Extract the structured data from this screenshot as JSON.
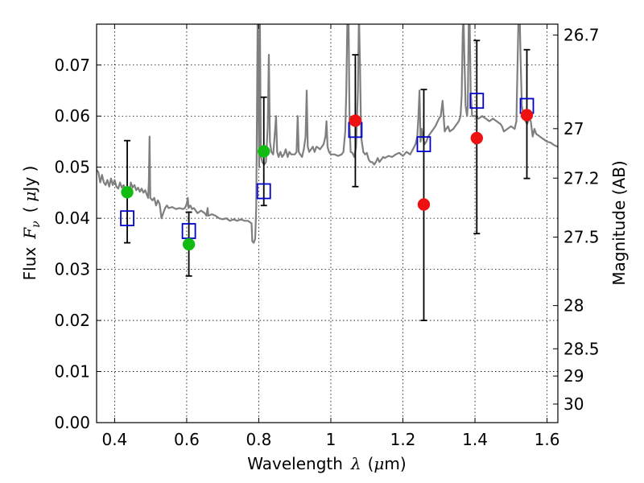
{
  "chart_data": {
    "type": "scatter",
    "xlabel_prefix": "Wavelength",
    "xlabel_symbol": "λ",
    "xlabel_unit_open": "(",
    "xlabel_unit_mu": "μ",
    "xlabel_unit_rest": "m)",
    "ylabel_prefix": "Flux",
    "ylabel_symbol": "F",
    "ylabel_subscript": "ν",
    "ylabel_unit_open": "(",
    "ylabel_unit_mu": "μ",
    "ylabel_unit_rest": "Jy )",
    "y2label": "Magnitude (AB)",
    "xlim": [
      0.35,
      1.63
    ],
    "ylim": [
      0.0,
      0.078
    ],
    "x_ticks": [
      {
        "value": 0.4,
        "label": "0.4"
      },
      {
        "value": 0.6,
        "label": "0.6"
      },
      {
        "value": 0.8,
        "label": "0.8"
      },
      {
        "value": 1.0,
        "label": "1"
      },
      {
        "value": 1.2,
        "label": "1.2"
      },
      {
        "value": 1.4,
        "label": "1.4"
      },
      {
        "value": 1.6,
        "label": "1.6"
      }
    ],
    "y_ticks": [
      {
        "value": 0.0,
        "label": "0.00"
      },
      {
        "value": 0.01,
        "label": "0.01"
      },
      {
        "value": 0.02,
        "label": "0.02"
      },
      {
        "value": 0.03,
        "label": "0.03"
      },
      {
        "value": 0.04,
        "label": "0.04"
      },
      {
        "value": 0.05,
        "label": "0.05"
      },
      {
        "value": 0.06,
        "label": "0.06"
      },
      {
        "value": 0.07,
        "label": "0.07"
      }
    ],
    "mag_ticks": [
      {
        "mag": 26.7,
        "label": "26.7"
      },
      {
        "mag": 27.0,
        "label": "27"
      },
      {
        "mag": 27.2,
        "label": "27.2"
      },
      {
        "mag": 27.5,
        "label": "27.5"
      },
      {
        "mag": 28.0,
        "label": "28"
      },
      {
        "mag": 28.5,
        "label": "28.5"
      },
      {
        "mag": 29.0,
        "label": "29"
      },
      {
        "mag": 30.0,
        "label": "30"
      }
    ],
    "grid": true,
    "colors": {
      "spectrum": "#7f7f7f",
      "green": "#11bb11",
      "red": "#ee1111",
      "model_box": "#0000cc",
      "errorbar": "#000000"
    },
    "spectrum": [
      [
        0.35,
        0.0495
      ],
      [
        0.355,
        0.049
      ],
      [
        0.36,
        0.047
      ],
      [
        0.365,
        0.0485
      ],
      [
        0.37,
        0.047
      ],
      [
        0.375,
        0.0465
      ],
      [
        0.38,
        0.0475
      ],
      [
        0.385,
        0.0462
      ],
      [
        0.39,
        0.0478
      ],
      [
        0.395,
        0.0465
      ],
      [
        0.4,
        0.0475
      ],
      [
        0.405,
        0.0462
      ],
      [
        0.41,
        0.0458
      ],
      [
        0.415,
        0.047
      ],
      [
        0.42,
        0.046
      ],
      [
        0.425,
        0.0465
      ],
      [
        0.43,
        0.045
      ],
      [
        0.435,
        0.046
      ],
      [
        0.44,
        0.0445
      ],
      [
        0.445,
        0.047
      ],
      [
        0.45,
        0.046
      ],
      [
        0.455,
        0.0465
      ],
      [
        0.46,
        0.0455
      ],
      [
        0.465,
        0.046
      ],
      [
        0.47,
        0.0452
      ],
      [
        0.475,
        0.0458
      ],
      [
        0.48,
        0.045
      ],
      [
        0.485,
        0.0455
      ],
      [
        0.49,
        0.0445
      ],
      [
        0.493,
        0.044
      ],
      [
        0.495,
        0.047
      ],
      [
        0.497,
        0.056
      ],
      [
        0.499,
        0.044
      ],
      [
        0.505,
        0.0435
      ],
      [
        0.51,
        0.044
      ],
      [
        0.515,
        0.0425
      ],
      [
        0.52,
        0.0435
      ],
      [
        0.525,
        0.0428
      ],
      [
        0.53,
        0.04
      ],
      [
        0.535,
        0.041
      ],
      [
        0.54,
        0.042
      ],
      [
        0.545,
        0.0425
      ],
      [
        0.55,
        0.042
      ],
      [
        0.56,
        0.0422
      ],
      [
        0.57,
        0.0418
      ],
      [
        0.58,
        0.042
      ],
      [
        0.59,
        0.0418
      ],
      [
        0.595,
        0.042
      ],
      [
        0.6,
        0.0428
      ],
      [
        0.603,
        0.044
      ],
      [
        0.605,
        0.042
      ],
      [
        0.61,
        0.0425
      ],
      [
        0.615,
        0.0418
      ],
      [
        0.62,
        0.042
      ],
      [
        0.63,
        0.041
      ],
      [
        0.64,
        0.0415
      ],
      [
        0.65,
        0.041
      ],
      [
        0.655,
        0.0405
      ],
      [
        0.658,
        0.042
      ],
      [
        0.66,
        0.0405
      ],
      [
        0.67,
        0.0408
      ],
      [
        0.68,
        0.0405
      ],
      [
        0.69,
        0.04
      ],
      [
        0.7,
        0.0398
      ],
      [
        0.71,
        0.04
      ],
      [
        0.72,
        0.0395
      ],
      [
        0.73,
        0.0398
      ],
      [
        0.74,
        0.0395
      ],
      [
        0.75,
        0.0398
      ],
      [
        0.76,
        0.0395
      ],
      [
        0.77,
        0.0395
      ],
      [
        0.78,
        0.039
      ],
      [
        0.782,
        0.0355
      ],
      [
        0.786,
        0.0352
      ],
      [
        0.79,
        0.036
      ],
      [
        0.793,
        0.042
      ],
      [
        0.795,
        0.06
      ],
      [
        0.797,
        0.08
      ],
      [
        0.799,
        0.065
      ],
      [
        0.801,
        0.05
      ],
      [
        0.803,
        0.08
      ],
      [
        0.806,
        0.052
      ],
      [
        0.81,
        0.051
      ],
      [
        0.815,
        0.0505
      ],
      [
        0.82,
        0.051
      ],
      [
        0.825,
        0.058
      ],
      [
        0.828,
        0.072
      ],
      [
        0.831,
        0.055
      ],
      [
        0.835,
        0.053
      ],
      [
        0.84,
        0.0525
      ],
      [
        0.845,
        0.057
      ],
      [
        0.848,
        0.06
      ],
      [
        0.851,
        0.053
      ],
      [
        0.855,
        0.052
      ],
      [
        0.86,
        0.053
      ],
      [
        0.865,
        0.052
      ],
      [
        0.87,
        0.0525
      ],
      [
        0.875,
        0.0535
      ],
      [
        0.88,
        0.052
      ],
      [
        0.885,
        0.053
      ],
      [
        0.89,
        0.0525
      ],
      [
        0.9,
        0.0525
      ],
      [
        0.905,
        0.053
      ],
      [
        0.908,
        0.06
      ],
      [
        0.911,
        0.053
      ],
      [
        0.915,
        0.0525
      ],
      [
        0.92,
        0.052
      ],
      [
        0.925,
        0.0535
      ],
      [
        0.93,
        0.056
      ],
      [
        0.933,
        0.065
      ],
      [
        0.936,
        0.054
      ],
      [
        0.94,
        0.053
      ],
      [
        0.945,
        0.0535
      ],
      [
        0.95,
        0.054
      ],
      [
        0.955,
        0.053
      ],
      [
        0.96,
        0.054
      ],
      [
        0.965,
        0.0538
      ],
      [
        0.97,
        0.0535
      ],
      [
        0.975,
        0.054
      ],
      [
        0.98,
        0.0545
      ],
      [
        0.985,
        0.056
      ],
      [
        0.988,
        0.059
      ],
      [
        0.991,
        0.054
      ],
      [
        0.995,
        0.053
      ],
      [
        1.0,
        0.0525
      ],
      [
        1.01,
        0.0525
      ],
      [
        1.02,
        0.0522
      ],
      [
        1.03,
        0.0525
      ],
      [
        1.035,
        0.053
      ],
      [
        1.04,
        0.057
      ],
      [
        1.043,
        0.065
      ],
      [
        1.046,
        0.08
      ],
      [
        1.049,
        0.08
      ],
      [
        1.052,
        0.058
      ],
      [
        1.055,
        0.053
      ],
      [
        1.06,
        0.0528
      ],
      [
        1.065,
        0.052
      ],
      [
        1.07,
        0.054
      ],
      [
        1.075,
        0.065
      ],
      [
        1.078,
        0.08
      ],
      [
        1.081,
        0.07
      ],
      [
        1.084,
        0.056
      ],
      [
        1.09,
        0.053
      ],
      [
        1.095,
        0.0525
      ],
      [
        1.1,
        0.0528
      ],
      [
        1.105,
        0.0515
      ],
      [
        1.11,
        0.051
      ],
      [
        1.115,
        0.051
      ],
      [
        1.12,
        0.0505
      ],
      [
        1.125,
        0.051
      ],
      [
        1.13,
        0.0518
      ],
      [
        1.135,
        0.051
      ],
      [
        1.14,
        0.0515
      ],
      [
        1.145,
        0.052
      ],
      [
        1.15,
        0.0518
      ],
      [
        1.16,
        0.0522
      ],
      [
        1.17,
        0.052
      ],
      [
        1.18,
        0.0525
      ],
      [
        1.19,
        0.0528
      ],
      [
        1.2,
        0.0522
      ],
      [
        1.21,
        0.053
      ],
      [
        1.22,
        0.0525
      ],
      [
        1.23,
        0.0538
      ],
      [
        1.235,
        0.0545
      ],
      [
        1.24,
        0.056
      ],
      [
        1.243,
        0.06
      ],
      [
        1.246,
        0.065
      ],
      [
        1.249,
        0.055
      ],
      [
        1.252,
        0.0575
      ],
      [
        1.255,
        0.056
      ],
      [
        1.26,
        0.0545
      ],
      [
        1.265,
        0.055
      ],
      [
        1.27,
        0.056
      ],
      [
        1.275,
        0.0565
      ],
      [
        1.28,
        0.057
      ],
      [
        1.285,
        0.0575
      ],
      [
        1.29,
        0.058
      ],
      [
        1.3,
        0.0595
      ],
      [
        1.305,
        0.06
      ],
      [
        1.31,
        0.063
      ],
      [
        1.313,
        0.06
      ],
      [
        1.316,
        0.057
      ],
      [
        1.32,
        0.0575
      ],
      [
        1.325,
        0.058
      ],
      [
        1.33,
        0.057
      ],
      [
        1.34,
        0.0575
      ],
      [
        1.345,
        0.058
      ],
      [
        1.35,
        0.0585
      ],
      [
        1.355,
        0.059
      ],
      [
        1.36,
        0.06
      ],
      [
        1.363,
        0.064
      ],
      [
        1.366,
        0.076
      ],
      [
        1.368,
        0.08
      ],
      [
        1.371,
        0.07
      ],
      [
        1.374,
        0.062
      ],
      [
        1.378,
        0.06
      ],
      [
        1.38,
        0.062
      ],
      [
        1.383,
        0.08
      ],
      [
        1.385,
        0.08
      ],
      [
        1.388,
        0.065
      ],
      [
        1.392,
        0.06
      ],
      [
        1.4,
        0.06
      ],
      [
        1.41,
        0.0595
      ],
      [
        1.42,
        0.06
      ],
      [
        1.43,
        0.0595
      ],
      [
        1.44,
        0.059
      ],
      [
        1.45,
        0.0595
      ],
      [
        1.46,
        0.059
      ],
      [
        1.47,
        0.0585
      ],
      [
        1.475,
        0.058
      ],
      [
        1.48,
        0.057
      ],
      [
        1.49,
        0.0575
      ],
      [
        1.5,
        0.058
      ],
      [
        1.51,
        0.0575
      ],
      [
        1.515,
        0.059
      ],
      [
        1.518,
        0.07
      ],
      [
        1.521,
        0.08
      ],
      [
        1.524,
        0.08
      ],
      [
        1.527,
        0.07
      ],
      [
        1.53,
        0.062
      ],
      [
        1.535,
        0.06
      ],
      [
        1.54,
        0.059
      ],
      [
        1.545,
        0.0585
      ],
      [
        1.55,
        0.0595
      ],
      [
        1.555,
        0.059
      ],
      [
        1.56,
        0.056
      ],
      [
        1.565,
        0.0575
      ],
      [
        1.57,
        0.0565
      ],
      [
        1.58,
        0.056
      ],
      [
        1.59,
        0.0555
      ],
      [
        1.6,
        0.055
      ],
      [
        1.61,
        0.0548
      ],
      [
        1.62,
        0.0543
      ],
      [
        1.63,
        0.054
      ]
    ],
    "model_boxes": [
      {
        "x": 0.435,
        "y": 0.04
      },
      {
        "x": 0.606,
        "y": 0.0375
      },
      {
        "x": 0.814,
        "y": 0.0453
      },
      {
        "x": 1.068,
        "y": 0.0573
      },
      {
        "x": 1.258,
        "y": 0.0545
      },
      {
        "x": 1.405,
        "y": 0.063
      },
      {
        "x": 1.544,
        "y": 0.062
      }
    ],
    "errorbars": [
      {
        "x": 0.435,
        "lo": 0.0352,
        "hi": 0.0552
      },
      {
        "x": 0.606,
        "lo": 0.0287,
        "hi": 0.0412
      },
      {
        "x": 0.814,
        "lo": 0.0425,
        "hi": 0.0637
      },
      {
        "x": 1.068,
        "lo": 0.0462,
        "hi": 0.072
      },
      {
        "x": 1.258,
        "lo": 0.02,
        "hi": 0.0652
      },
      {
        "x": 1.405,
        "lo": 0.037,
        "hi": 0.0748
      },
      {
        "x": 1.544,
        "lo": 0.0478,
        "hi": 0.073
      }
    ],
    "points": [
      {
        "x": 0.435,
        "y": 0.0451,
        "color": "green"
      },
      {
        "x": 0.606,
        "y": 0.0349,
        "color": "green"
      },
      {
        "x": 0.814,
        "y": 0.0531,
        "color": "green"
      },
      {
        "x": 1.068,
        "y": 0.0591,
        "color": "red"
      },
      {
        "x": 1.258,
        "y": 0.0427,
        "color": "red"
      },
      {
        "x": 1.405,
        "y": 0.0557,
        "color": "red"
      },
      {
        "x": 1.544,
        "y": 0.0602,
        "color": "red"
      }
    ]
  }
}
